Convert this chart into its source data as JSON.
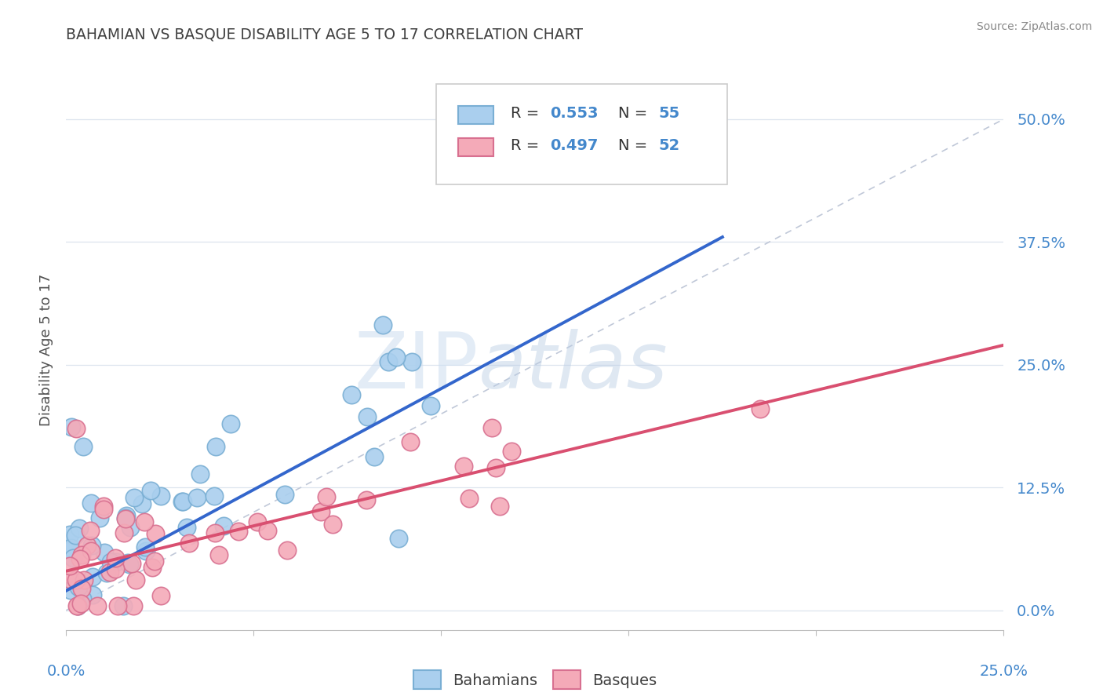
{
  "title": "BAHAMIAN VS BASQUE DISABILITY AGE 5 TO 17 CORRELATION CHART",
  "source": "Source: ZipAtlas.com",
  "ylabel": "Disability Age 5 to 17",
  "ytick_labels": [
    "0.0%",
    "12.5%",
    "25.0%",
    "37.5%",
    "50.0%"
  ],
  "ytick_values": [
    0.0,
    0.125,
    0.25,
    0.375,
    0.5
  ],
  "xlim": [
    0.0,
    0.25
  ],
  "ylim": [
    -0.02,
    0.55
  ],
  "watermark_zip": "ZIP",
  "watermark_atlas": "atlas",
  "bahamian_color": "#aacfee",
  "basque_color": "#f4aab8",
  "bahamian_edge": "#7aafd4",
  "basque_edge": "#d87090",
  "trend_bahamian_color": "#3366cc",
  "trend_basque_color": "#d94f70",
  "diagonal_color": "#c0c8d8",
  "grid_color": "#dde4ee",
  "background_color": "#ffffff",
  "title_color": "#404040",
  "axis_label_color": "#4488cc",
  "source_color": "#888888",
  "legend_R1": "R = 0.553",
  "legend_N1": "N = 55",
  "legend_R2": "R = 0.497",
  "legend_N2": "N = 52",
  "legend_label1": "Bahamians",
  "legend_label2": "Basques",
  "bah_trend_x": [
    0.0,
    0.175
  ],
  "bah_trend_y": [
    0.02,
    0.38
  ],
  "bas_trend_x": [
    0.0,
    0.25
  ],
  "bas_trend_y": [
    0.04,
    0.27
  ]
}
